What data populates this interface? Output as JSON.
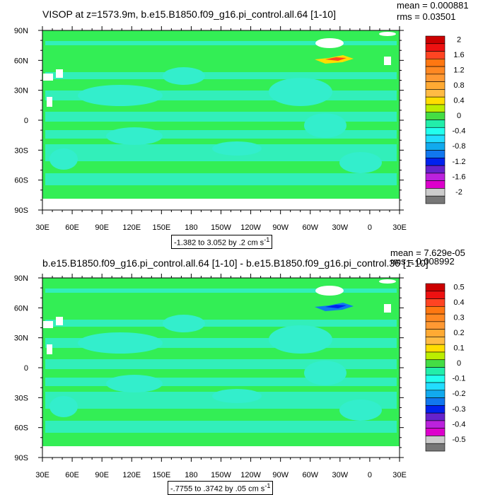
{
  "chart_data": [
    {
      "type": "heatmap",
      "title": "VISOP at z=1573.9m, b.e15.B1850.f09_g16.pi_control.all.64 [1-10]",
      "stats": {
        "mean": "mean = 0.000881",
        "rms": "rms = 0.03501"
      },
      "caption": "-1.382 to 3.052 by .2 cm s",
      "caption_sup": "-1",
      "x_ticks": [
        "30E",
        "60E",
        "90E",
        "120E",
        "150E",
        "180",
        "150W",
        "120W",
        "90W",
        "60W",
        "30W",
        "0",
        "30E"
      ],
      "y_ticks": [
        "90N",
        "60N",
        "30N",
        "0",
        "30S",
        "60S",
        "90S"
      ],
      "colorbar_labels": [
        "2",
        "1.6",
        "1.2",
        "0.8",
        "0.4",
        "0",
        "-0.4",
        "-0.8",
        "-1.2",
        "-1.6",
        "-2"
      ],
      "colorbar_levels": [
        2,
        1.8,
        1.6,
        1.4,
        1.2,
        1.0,
        0.8,
        0.6,
        0.4,
        0.2,
        0,
        -0.2,
        -0.4,
        -0.6,
        -0.8,
        -1.0,
        -1.2,
        -1.4,
        -1.6,
        -1.8,
        -2
      ]
    },
    {
      "type": "heatmap",
      "title": "b.e15.B1850.f09_g16.pi_control.all.64 [1-10] - b.e15.B1850.f09_g16.pi_control.36 [1-10]",
      "stats": {
        "mean": "mean = 7.629e-05",
        "rms": "rms = 0.008992"
      },
      "caption": "-.7755 to .3742 by .05 cm s",
      "caption_sup": "-1",
      "x_ticks": [
        "30E",
        "60E",
        "90E",
        "120E",
        "150E",
        "180",
        "150W",
        "120W",
        "90W",
        "60W",
        "30W",
        "0",
        "30E"
      ],
      "y_ticks": [
        "90N",
        "60N",
        "30N",
        "0",
        "30S",
        "60S",
        "90S"
      ],
      "colorbar_labels": [
        "0.5",
        "0.4",
        "0.3",
        "0.2",
        "0.1",
        "0",
        "-0.1",
        "-0.2",
        "-0.3",
        "-0.4",
        "-0.5"
      ],
      "colorbar_levels": [
        0.5,
        0.45,
        0.4,
        0.35,
        0.3,
        0.25,
        0.2,
        0.15,
        0.1,
        0.05,
        0,
        -0.05,
        -0.1,
        -0.15,
        -0.2,
        -0.25,
        -0.3,
        -0.35,
        -0.4,
        -0.45,
        -0.5
      ]
    }
  ],
  "colors": {
    "field_green": "#33ee55",
    "field_cyan": "#33eecc",
    "colorbar": [
      "#cc0000",
      "#ee1111",
      "#ff4422",
      "#ff7711",
      "#ff8822",
      "#ff9933",
      "#ffaa33",
      "#ffbb44",
      "#ffdd00",
      "#bbee00",
      "#44dd44",
      "#22eeaa",
      "#22ffee",
      "#22ddff",
      "#11aaee",
      "#1177ee",
      "#0022ee",
      "#6622cc",
      "#bb22dd",
      "#dd00cc",
      "#cccccc",
      "#777777"
    ]
  }
}
